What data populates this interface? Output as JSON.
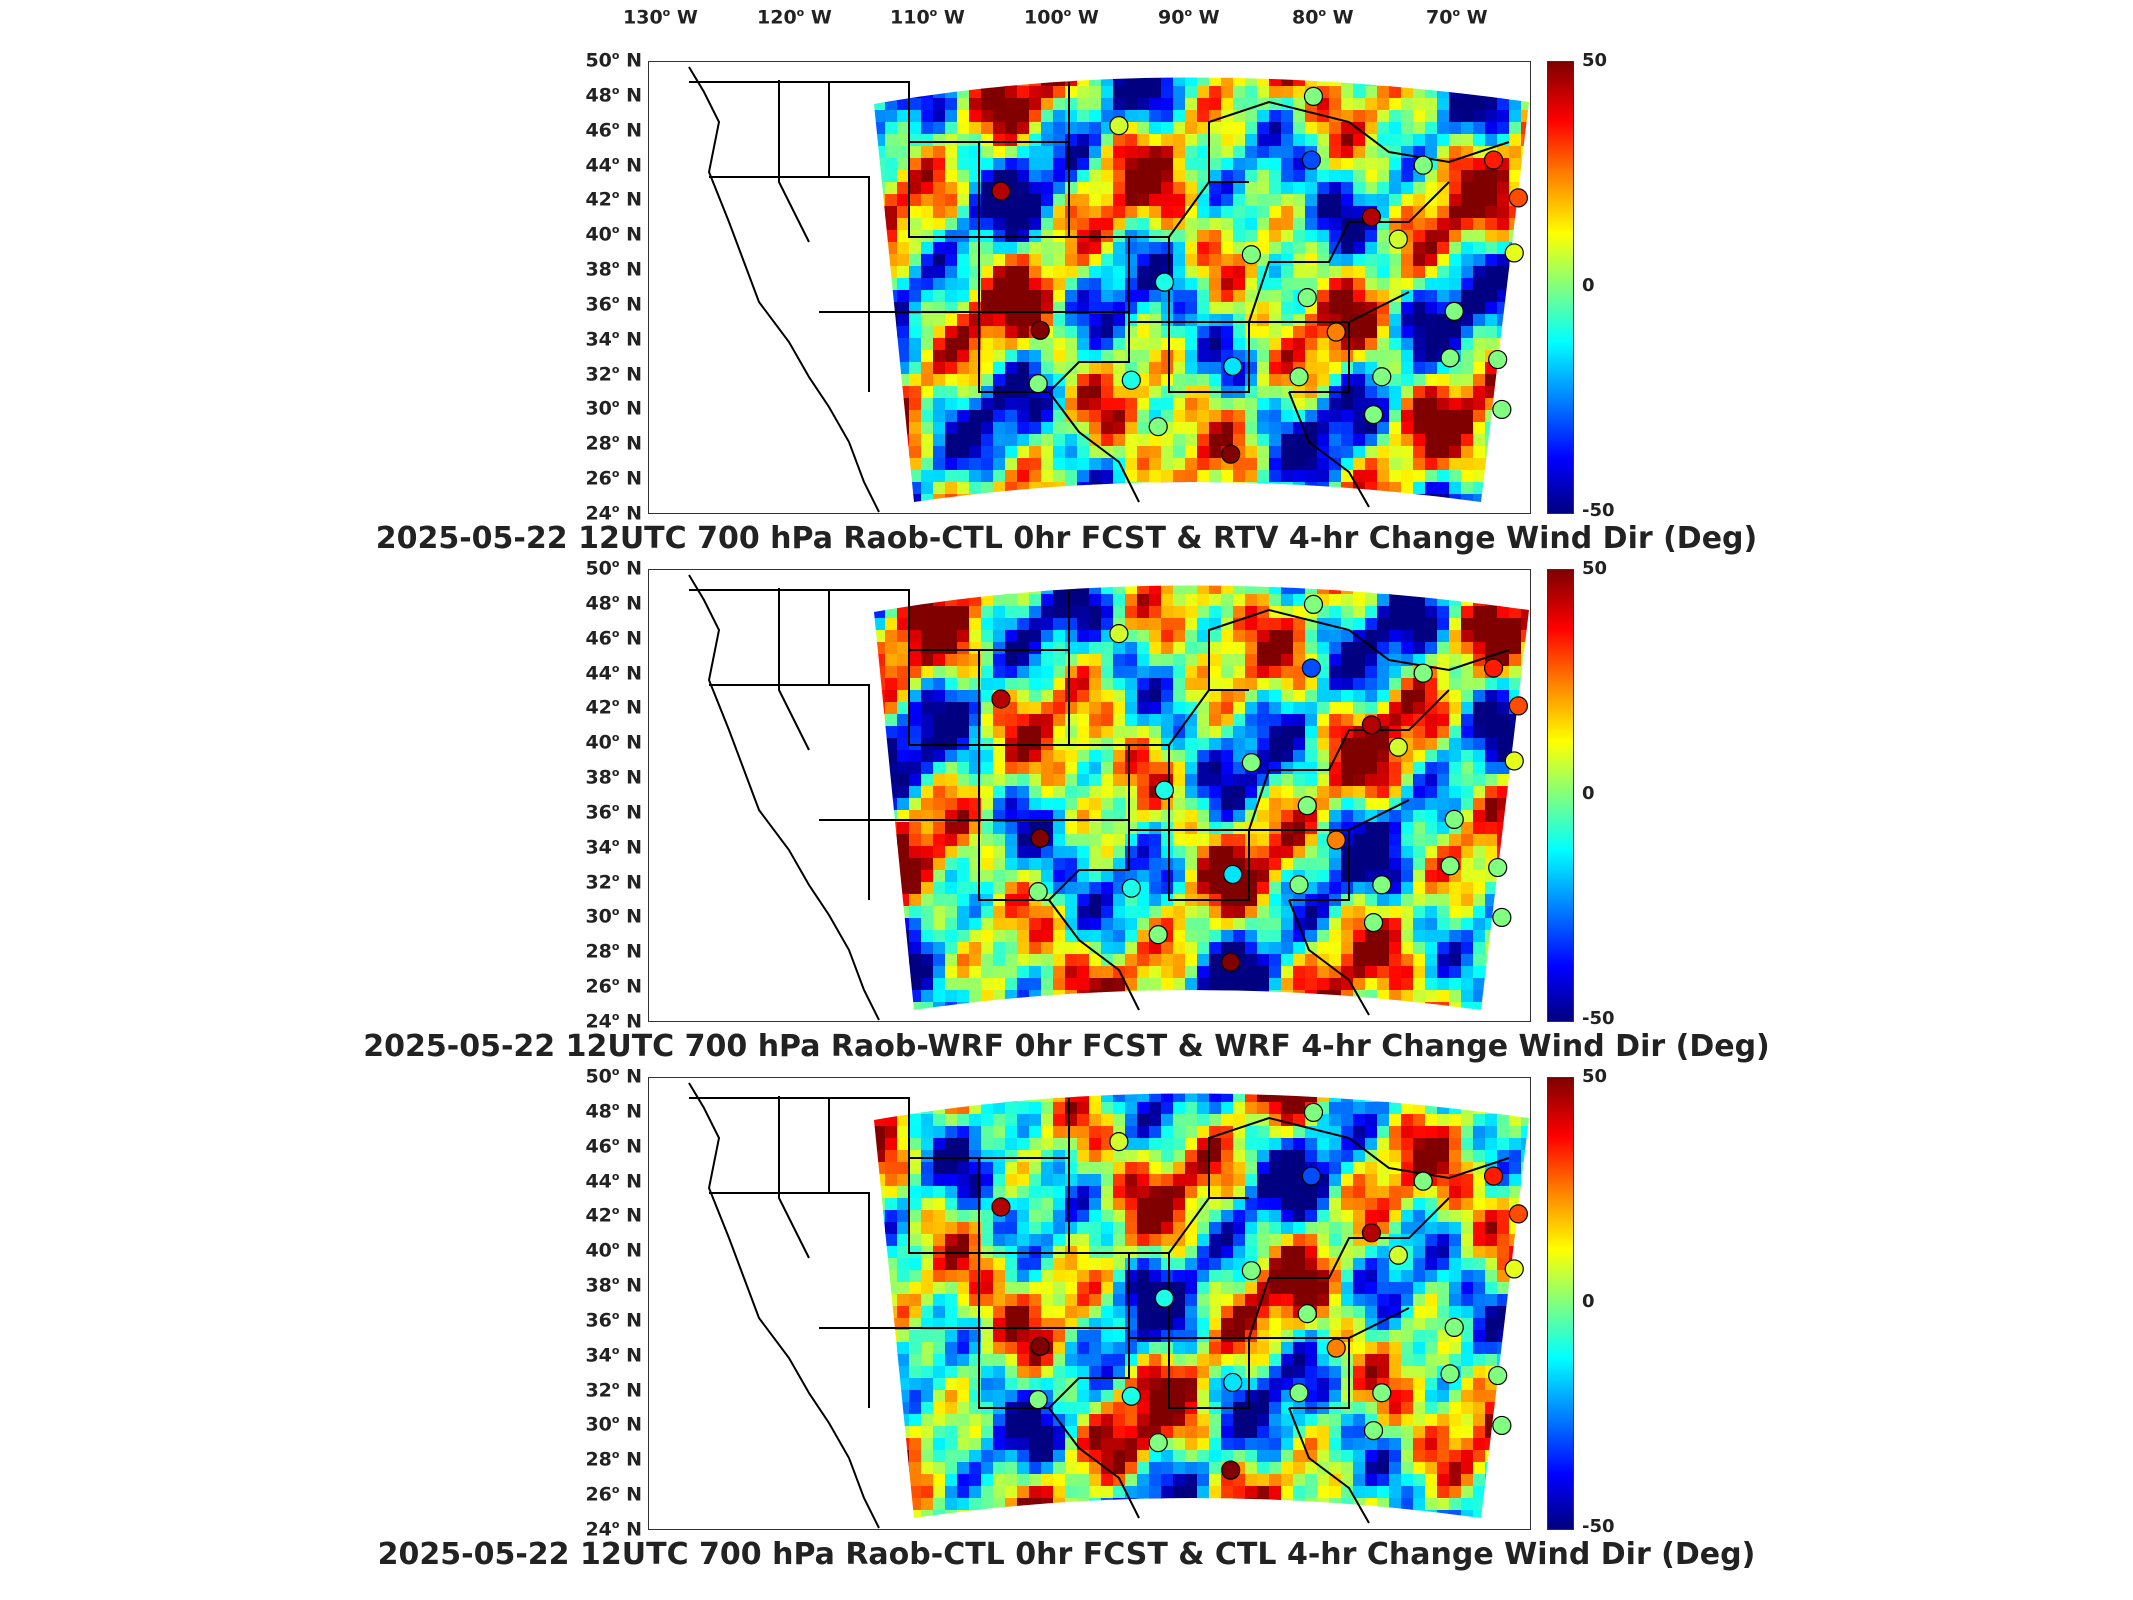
{
  "longitude_labels": [
    "130",
    "120",
    "110",
    "100",
    "90",
    "80",
    "70"
  ],
  "longitude_suffix": "W",
  "latitude_labels": [
    "50",
    "48",
    "46",
    "44",
    "42",
    "40",
    "38",
    "36",
    "34",
    "32",
    "30",
    "28",
    "26",
    "24"
  ],
  "latitude_suffix": "N",
  "colorbar": {
    "max": "50",
    "mid": "0",
    "min": "-50"
  },
  "panels": [
    {
      "title": "2025-05-22 12UTC 700 hPa Raob-CTL 0hr FCST & RTV 4-hr Change Wind Dir (Deg)"
    },
    {
      "title": "2025-05-22 12UTC 700 hPa Raob-WRF 0hr FCST & WRF 4-hr Change Wind Dir (Deg)"
    },
    {
      "title": "2025-05-22 12UTC 700 hPa Raob-CTL 0hr FCST & CTL 4-hr Change Wind Dir (Deg)"
    }
  ],
  "colors": {
    "high": "#7f0000",
    "low": "#00007f",
    "zero": "#80ff80"
  },
  "stations": [
    {
      "lat": 48.6,
      "lon": -93.4,
      "v": 0
    },
    {
      "lat": 46.9,
      "lon": -102.8,
      "v": 8
    },
    {
      "lat": 44.9,
      "lon": -93.5,
      "v": -30
    },
    {
      "lat": 44.6,
      "lon": -88.1,
      "v": 0
    },
    {
      "lat": 44.9,
      "lon": -84.7,
      "v": 35
    },
    {
      "lat": 42.7,
      "lon": -83.5,
      "v": 30
    },
    {
      "lat": 43.1,
      "lon": -108.5,
      "v": 45
    },
    {
      "lat": 41.6,
      "lon": -90.6,
      "v": 45
    },
    {
      "lat": 40.3,
      "lon": -89.3,
      "v": 8
    },
    {
      "lat": 39.4,
      "lon": -96.4,
      "v": 0
    },
    {
      "lat": 39.5,
      "lon": -83.7,
      "v": 10
    },
    {
      "lat": 37.8,
      "lon": -100.6,
      "v": -10
    },
    {
      "lat": 36.9,
      "lon": -93.7,
      "v": 0
    },
    {
      "lat": 37.2,
      "lon": -80.5,
      "v": 0
    },
    {
      "lat": 38.5,
      "lon": -77.0,
      "v": 0
    },
    {
      "lat": 36.1,
      "lon": -86.6,
      "v": 0
    },
    {
      "lat": 34.9,
      "lon": -92.3,
      "v": 25
    },
    {
      "lat": 35.0,
      "lon": -106.6,
      "v": 50
    },
    {
      "lat": 32.9,
      "lon": -97.3,
      "v": -15
    },
    {
      "lat": 32.3,
      "lon": -94.1,
      "v": 0
    },
    {
      "lat": 32.3,
      "lon": -90.1,
      "v": 0
    },
    {
      "lat": 33.4,
      "lon": -86.8,
      "v": 0
    },
    {
      "lat": 33.3,
      "lon": -84.5,
      "v": 0
    },
    {
      "lat": 32.1,
      "lon": -102.2,
      "v": -10
    },
    {
      "lat": 31.9,
      "lon": -106.7,
      "v": 0
    },
    {
      "lat": 30.1,
      "lon": -90.5,
      "v": 0
    },
    {
      "lat": 30.4,
      "lon": -84.3,
      "v": 0
    },
    {
      "lat": 29.4,
      "lon": -100.9,
      "v": 0
    },
    {
      "lat": 27.8,
      "lon": -97.4,
      "v": 50
    },
    {
      "lat": 27.7,
      "lon": -82.4,
      "v": 0
    },
    {
      "lat": 34.8,
      "lon": -76.9,
      "v": 0
    },
    {
      "lat": 43.0,
      "lon": -78.7,
      "v": 0
    }
  ]
}
